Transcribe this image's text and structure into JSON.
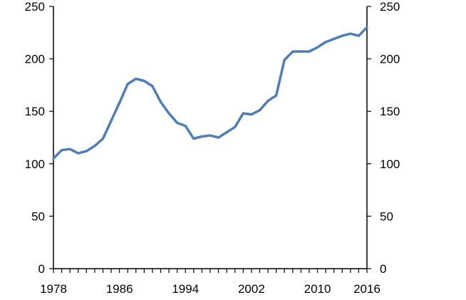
{
  "chart_data": {
    "type": "line",
    "title": "",
    "xlabel": "",
    "ylabel": "",
    "xlim": [
      1978,
      2016
    ],
    "ylim": [
      0,
      250
    ],
    "x_ticks": [
      1978,
      1986,
      1994,
      2002,
      2010,
      2016
    ],
    "x_tick_labels": [
      "1978",
      "1986",
      "1994",
      "2002",
      "2010",
      "2016"
    ],
    "y_ticks": [
      0,
      50,
      100,
      150,
      200,
      250
    ],
    "y_tick_labels": [
      "0",
      "50",
      "100",
      "150",
      "200",
      "250"
    ],
    "grid": false,
    "legend": "none",
    "secondary_y_axis": true,
    "series": [
      {
        "color": "#4f7db5",
        "x": [
          1978,
          1979,
          1980,
          1981,
          1982,
          1983,
          1984,
          1985,
          1986,
          1987,
          1988,
          1989,
          1990,
          1991,
          1992,
          1993,
          1994,
          1995,
          1996,
          1997,
          1998,
          1999,
          2000,
          2001,
          2002,
          2003,
          2004,
          2005,
          2006,
          2007,
          2008,
          2009,
          2010,
          2011,
          2012,
          2013,
          2014,
          2015,
          2016
        ],
        "values": [
          105,
          113,
          114,
          110,
          112,
          117,
          124,
          141,
          158,
          176,
          181,
          179,
          174,
          159,
          148,
          139,
          136,
          124,
          126,
          127,
          125,
          130,
          135,
          148,
          147,
          151,
          160,
          165,
          199,
          207,
          207,
          207,
          211,
          216,
          219,
          222,
          224,
          222,
          230
        ]
      }
    ]
  }
}
